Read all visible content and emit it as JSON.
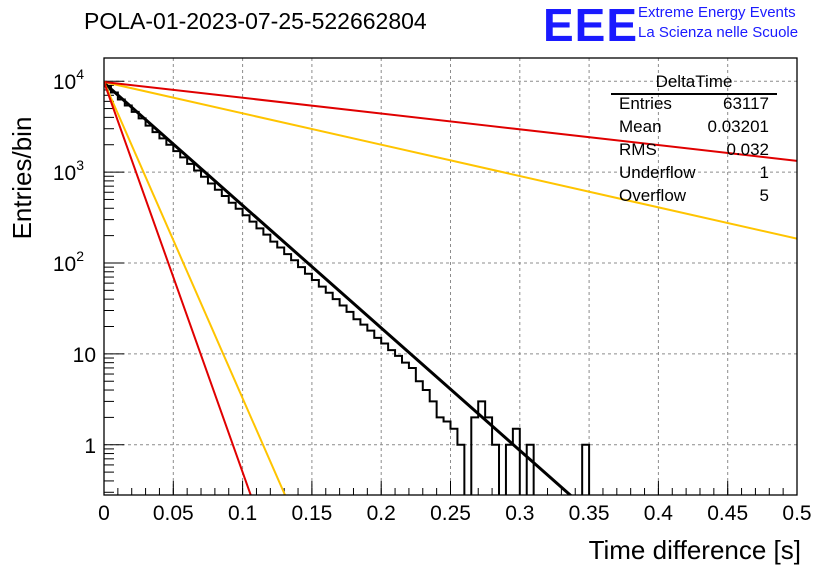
{
  "plot_title": "POLA-01-2023-07-25-522662804",
  "logo": {
    "mark": "EEE",
    "line1": "Extreme Energy Events",
    "line2": "La Scienza nelle Scuole",
    "color": "#1a1aff"
  },
  "stats": {
    "name": "DeltaTime",
    "rows": [
      {
        "key": "Entries",
        "value": "63117"
      },
      {
        "key": "Mean",
        "value": "0.03201"
      },
      {
        "key": "RMS",
        "value": "0.032"
      },
      {
        "key": "Underflow",
        "value": "1"
      },
      {
        "key": "Overflow",
        "value": "5"
      }
    ]
  },
  "chart_data": {
    "type": "line",
    "xlabel": "Time difference [s]",
    "ylabel": "Entries/bin",
    "xlim": [
      0,
      0.5
    ],
    "ylim": [
      0.28,
      18000
    ],
    "log_y": true,
    "grid": true,
    "x_ticks": [
      "0",
      "0.05",
      "0.1",
      "0.15",
      "0.2",
      "0.25",
      "0.3",
      "0.35",
      "0.4",
      "0.45",
      "0.5"
    ],
    "y_ticks": [
      {
        "value": 1,
        "label": "1",
        "exp": ""
      },
      {
        "value": 10,
        "label": "10",
        "exp": ""
      },
      {
        "value": 100,
        "label": "10",
        "exp": "2"
      },
      {
        "value": 1000,
        "label": "10",
        "exp": "3"
      },
      {
        "value": 10000,
        "label": "10",
        "exp": "4"
      }
    ],
    "histogram": {
      "bin_width": 0.005,
      "color": "#000000",
      "values": [
        8800,
        7500,
        6300,
        5400,
        4600,
        3900,
        3250,
        2750,
        2350,
        2000,
        1700,
        1450,
        1230,
        1040,
        890,
        750,
        640,
        545,
        460,
        395,
        335,
        285,
        240,
        205,
        172,
        148,
        125,
        107,
        90,
        76,
        65,
        55,
        47,
        40,
        34,
        29,
        24,
        21,
        18,
        15,
        13,
        11,
        9.5,
        8,
        7,
        5,
        4,
        3,
        2,
        1.8,
        1.5,
        1,
        0.25,
        2,
        3,
        2,
        1,
        0.25,
        1,
        1.5,
        0.25,
        1,
        0.25,
        0.25,
        0.25,
        0.25,
        0.25,
        0.25,
        0.25,
        1,
        0.25,
        0.25
      ]
    },
    "series": [
      {
        "name": "",
        "color": "#000000",
        "points": [
          [
            0,
            9600
          ],
          [
            0.34,
            0.25
          ]
        ]
      },
      {
        "name": "",
        "color": "#ffc400",
        "points": [
          [
            0,
            9800
          ],
          [
            0.5,
            185
          ]
        ]
      },
      {
        "name": "",
        "color": "#e00000",
        "points": [
          [
            0,
            9800
          ],
          [
            0.5,
            1330
          ]
        ]
      },
      {
        "name": "",
        "color": "#ffc400",
        "points": [
          [
            0,
            9800
          ],
          [
            0.132,
            0.25
          ]
        ]
      },
      {
        "name": "",
        "color": "#e00000",
        "points": [
          [
            0,
            9800
          ],
          [
            0.107,
            0.25
          ]
        ]
      }
    ]
  }
}
